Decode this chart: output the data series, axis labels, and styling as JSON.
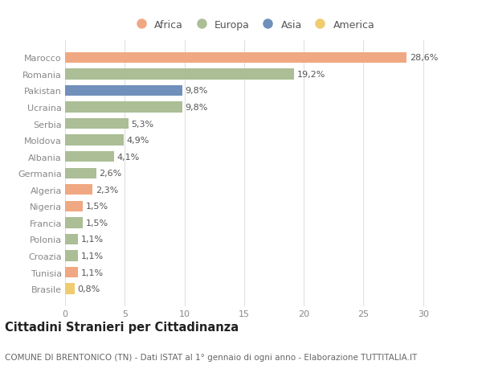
{
  "categories": [
    "Brasile",
    "Tunisia",
    "Croazia",
    "Polonia",
    "Francia",
    "Nigeria",
    "Algeria",
    "Germania",
    "Albania",
    "Moldova",
    "Serbia",
    "Ucraina",
    "Pakistan",
    "Romania",
    "Marocco"
  ],
  "values": [
    0.8,
    1.1,
    1.1,
    1.1,
    1.5,
    1.5,
    2.3,
    2.6,
    4.1,
    4.9,
    5.3,
    9.8,
    9.8,
    19.2,
    28.6
  ],
  "labels": [
    "0,8%",
    "1,1%",
    "1,1%",
    "1,1%",
    "1,5%",
    "1,5%",
    "2,3%",
    "2,6%",
    "4,1%",
    "4,9%",
    "5,3%",
    "9,8%",
    "9,8%",
    "19,2%",
    "28,6%"
  ],
  "continents": [
    "America",
    "Africa",
    "Europa",
    "Europa",
    "Europa",
    "Africa",
    "Africa",
    "Europa",
    "Europa",
    "Europa",
    "Europa",
    "Europa",
    "Asia",
    "Europa",
    "Africa"
  ],
  "continent_colors": {
    "Africa": "#F0A882",
    "Europa": "#ABBE96",
    "Asia": "#7090BB",
    "America": "#F0CC70"
  },
  "legend_order": [
    "Africa",
    "Europa",
    "Asia",
    "America"
  ],
  "title": "Cittadini Stranieri per Cittadinanza",
  "subtitle": "COMUNE DI BRENTONICO (TN) - Dati ISTAT al 1° gennaio di ogni anno - Elaborazione TUTTITALIA.IT",
  "xlim": [
    0,
    31.5
  ],
  "xticks": [
    0,
    5,
    10,
    15,
    20,
    25,
    30
  ],
  "background_color": "#ffffff",
  "bar_height": 0.65,
  "grid_color": "#e0e0e0",
  "label_fontsize": 8,
  "tick_fontsize": 8,
  "title_fontsize": 10.5,
  "subtitle_fontsize": 7.5,
  "label_color": "#555555",
  "tick_color": "#888888"
}
